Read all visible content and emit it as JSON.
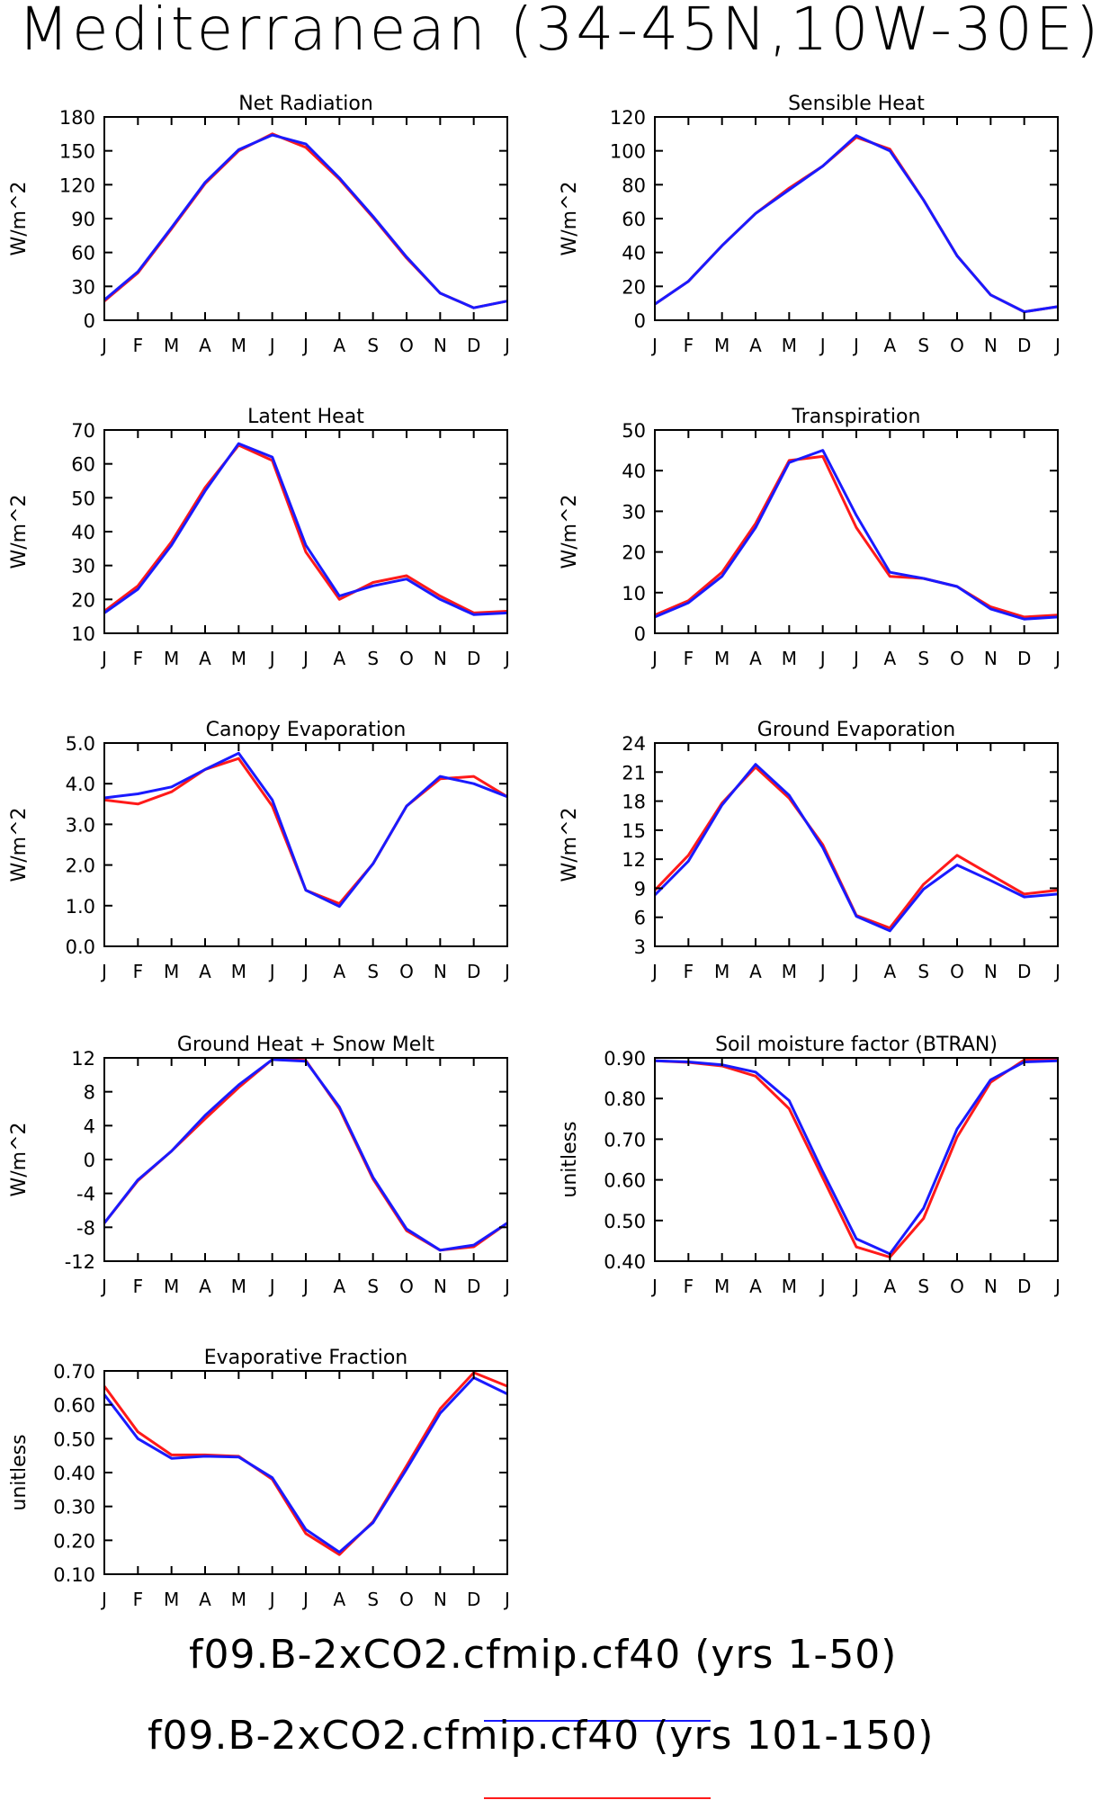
{
  "title": "Mediterranean (34-45N,10W-30E)",
  "months": [
    "J",
    "F",
    "M",
    "A",
    "M",
    "J",
    "J",
    "A",
    "S",
    "O",
    "N",
    "D",
    "J"
  ],
  "colors": {
    "run1": "#1a1aff",
    "run2": "#ff1a1a",
    "frame": "#000000"
  },
  "legend": [
    {
      "label": "f09.B-2xCO2.cfmip.cf40 (yrs 1-50)",
      "color": "#1a1aff"
    },
    {
      "label": "f09.B-2xCO2.cfmip.cf40 (yrs 101-150)",
      "color": "#ff1a1a"
    }
  ],
  "chart_data": [
    {
      "type": "line",
      "title": "Net Radiation",
      "ylabel": "W/m^2",
      "ylim": [
        0,
        180
      ],
      "yticks": [
        "0",
        "30",
        "60",
        "90",
        "120",
        "150",
        "180"
      ],
      "series": [
        {
          "values": [
            18,
            43,
            82,
            122,
            151,
            164,
            156,
            126,
            92,
            56,
            24,
            11,
            17
          ]
        },
        {
          "values": [
            17,
            42,
            81,
            121,
            150,
            165,
            153,
            125,
            91,
            55,
            24,
            11,
            17
          ]
        }
      ]
    },
    {
      "type": "line",
      "title": "Sensible Heat",
      "ylabel": "W/m^2",
      "ylim": [
        0,
        120
      ],
      "yticks": [
        "0",
        "20",
        "40",
        "60",
        "80",
        "100",
        "120"
      ],
      "series": [
        {
          "values": [
            9.5,
            23,
            44,
            63,
            77,
            91,
            109,
            100,
            71,
            38,
            15,
            5,
            8
          ]
        },
        {
          "values": [
            9.5,
            23,
            44,
            63,
            78,
            91,
            108,
            101,
            71,
            38,
            15,
            5,
            8
          ]
        }
      ]
    },
    {
      "type": "line",
      "title": "Latent Heat",
      "ylabel": "W/m^2",
      "ylim": [
        10,
        70
      ],
      "yticks": [
        "10",
        "20",
        "30",
        "40",
        "50",
        "60",
        "70"
      ],
      "series": [
        {
          "values": [
            16,
            23,
            36,
            52,
            66,
            62,
            36,
            21,
            24,
            26,
            20,
            15.5,
            16
          ]
        },
        {
          "values": [
            16.5,
            24,
            37,
            53,
            65.5,
            61,
            34,
            20,
            25,
            27,
            21,
            16,
            16.5
          ]
        }
      ]
    },
    {
      "type": "line",
      "title": "Transpiration",
      "ylabel": "W/m^2",
      "ylim": [
        0,
        50
      ],
      "yticks": [
        "0",
        "10",
        "20",
        "30",
        "40",
        "50"
      ],
      "series": [
        {
          "values": [
            4,
            7.5,
            14,
            26,
            42,
            45,
            29,
            15,
            13.5,
            11.5,
            6,
            3.5,
            4
          ]
        },
        {
          "values": [
            4.5,
            8,
            15,
            27,
            42.5,
            43.5,
            26,
            14,
            13.5,
            11.5,
            6.5,
            4,
            4.5
          ]
        }
      ]
    },
    {
      "type": "line",
      "title": "Canopy Evaporation",
      "ylabel": "W/m^2",
      "ylim": [
        0,
        5
      ],
      "yticks": [
        "0.0",
        "1.0",
        "2.0",
        "3.0",
        "4.0",
        "5.0"
      ],
      "series": [
        {
          "values": [
            3.65,
            3.75,
            3.92,
            4.35,
            4.75,
            3.6,
            1.38,
            0.98,
            2.03,
            3.45,
            4.18,
            4.0,
            3.68
          ]
        },
        {
          "values": [
            3.6,
            3.5,
            3.8,
            4.35,
            4.62,
            3.45,
            1.38,
            1.05,
            2.03,
            3.45,
            4.12,
            4.18,
            3.68
          ]
        }
      ]
    },
    {
      "type": "line",
      "title": "Ground Evaporation",
      "ylabel": "W/m^2",
      "ylim": [
        3,
        24
      ],
      "yticks": [
        "3",
        "6",
        "9",
        "12",
        "15",
        "18",
        "21",
        "24"
      ],
      "series": [
        {
          "values": [
            8.3,
            11.8,
            17.6,
            21.8,
            18.6,
            13.2,
            6.1,
            4.6,
            8.9,
            11.4,
            9.8,
            8.1,
            8.4
          ]
        },
        {
          "values": [
            8.8,
            12.4,
            17.8,
            21.5,
            18.3,
            13.5,
            6.2,
            4.9,
            9.4,
            12.4,
            10.4,
            8.4,
            8.8
          ]
        }
      ]
    },
    {
      "type": "line",
      "title": "Ground Heat + Snow Melt",
      "ylabel": "W/m^2",
      "ylim": [
        -12,
        12
      ],
      "yticks": [
        "-12",
        "-8",
        "-4",
        "0",
        "4",
        "8",
        "12"
      ],
      "series": [
        {
          "values": [
            -7.5,
            -2.4,
            1.0,
            5.2,
            8.8,
            11.8,
            11.6,
            6.2,
            -2.1,
            -8.2,
            -10.7,
            -10.1,
            -7.5
          ]
        },
        {
          "values": [
            -7.5,
            -2.5,
            1.0,
            4.8,
            8.5,
            11.8,
            11.7,
            6.0,
            -2.3,
            -8.4,
            -10.7,
            -10.3,
            -7.5
          ]
        }
      ]
    },
    {
      "type": "line",
      "title": "Soil moisture factor (BTRAN)",
      "ylabel": "unitless",
      "ylim": [
        0.4,
        0.9
      ],
      "yticks": [
        "0.40",
        "0.50",
        "0.60",
        "0.70",
        "0.80",
        "0.90"
      ],
      "series": [
        {
          "values": [
            0.893,
            0.89,
            0.883,
            0.865,
            0.795,
            0.62,
            0.455,
            0.418,
            0.53,
            0.725,
            0.846,
            0.89,
            0.893
          ]
        },
        {
          "values": [
            0.893,
            0.889,
            0.88,
            0.855,
            0.775,
            0.605,
            0.435,
            0.41,
            0.505,
            0.705,
            0.84,
            0.895,
            0.897
          ]
        }
      ]
    },
    {
      "type": "line",
      "title": "Evaporative Fraction",
      "ylabel": "unitless",
      "ylim": [
        0.1,
        0.7
      ],
      "yticks": [
        "0.10",
        "0.20",
        "0.30",
        "0.40",
        "0.50",
        "0.60",
        "0.70"
      ],
      "series": [
        {
          "values": [
            0.63,
            0.5,
            0.442,
            0.448,
            0.446,
            0.385,
            0.232,
            0.165,
            0.252,
            0.41,
            0.575,
            0.68,
            0.632
          ]
        },
        {
          "values": [
            0.655,
            0.52,
            0.452,
            0.452,
            0.448,
            0.38,
            0.22,
            0.158,
            0.255,
            0.42,
            0.588,
            0.695,
            0.655
          ]
        }
      ]
    }
  ]
}
